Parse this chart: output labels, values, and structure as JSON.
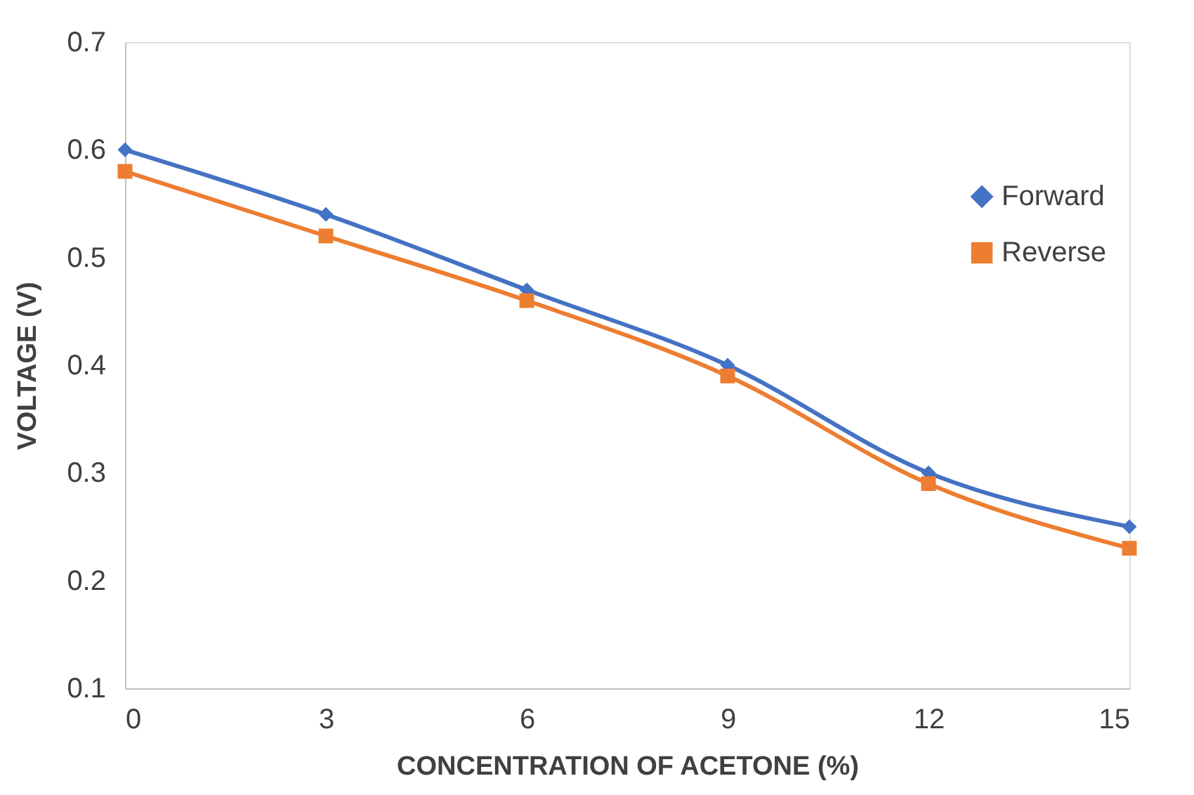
{
  "chart_data": {
    "type": "line",
    "xlabel": "CONCENTRATION OF ACETONE (%)",
    "ylabel": "VOLTAGE (V)",
    "x": [
      0,
      3,
      6,
      9,
      12,
      15
    ],
    "series": [
      {
        "name": "Forward",
        "color": "#4472c4",
        "marker": "diamond",
        "values": [
          0.6,
          0.54,
          0.47,
          0.4,
          0.3,
          0.25
        ]
      },
      {
        "name": "Reverse",
        "color": "#ed7d31",
        "marker": "square",
        "values": [
          0.58,
          0.52,
          0.46,
          0.39,
          0.29,
          0.23
        ]
      }
    ],
    "xlim": [
      0,
      15
    ],
    "xticks": [
      0,
      3,
      6,
      9,
      12,
      15
    ],
    "ylim": [
      0.1,
      0.7
    ],
    "yticks": [
      0.1,
      0.2,
      0.3,
      0.4,
      0.5,
      0.6,
      0.7
    ],
    "grid": false,
    "legend": "top right",
    "line_style": "solid"
  }
}
